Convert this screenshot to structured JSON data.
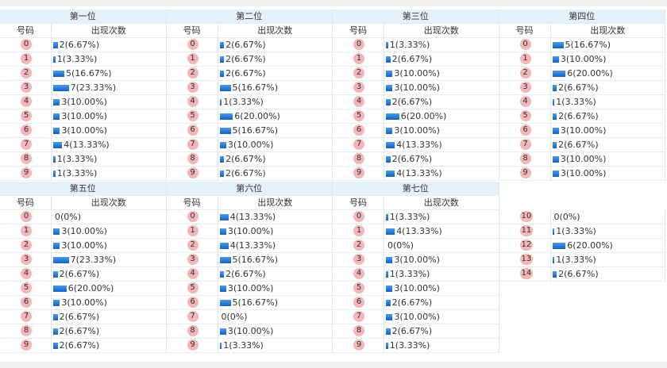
{
  "column_headers": [
    "号码",
    "出现次数"
  ],
  "panels": [
    {
      "title": "第一位",
      "rows": [
        {
          "number": "0",
          "count": 2,
          "text": "2(6.67%)"
        },
        {
          "number": "1",
          "count": 1,
          "text": "1(3.33%)"
        },
        {
          "number": "2",
          "count": 5,
          "text": "5(16.67%)"
        },
        {
          "number": "3",
          "count": 7,
          "text": "7(23.33%)"
        },
        {
          "number": "4",
          "count": 3,
          "text": "3(10.00%)"
        },
        {
          "number": "5",
          "count": 3,
          "text": "3(10.00%)"
        },
        {
          "number": "6",
          "count": 3,
          "text": "3(10.00%)"
        },
        {
          "number": "7",
          "count": 4,
          "text": "4(13.33%)"
        },
        {
          "number": "8",
          "count": 1,
          "text": "1(3.33%)"
        },
        {
          "number": "9",
          "count": 1,
          "text": "1(3.33%)"
        }
      ]
    },
    {
      "title": "第二位",
      "rows": [
        {
          "number": "0",
          "count": 2,
          "text": "2(6.67%)"
        },
        {
          "number": "1",
          "count": 2,
          "text": "2(6.67%)"
        },
        {
          "number": "2",
          "count": 2,
          "text": "2(6.67%)"
        },
        {
          "number": "3",
          "count": 5,
          "text": "5(16.67%)"
        },
        {
          "number": "4",
          "count": 1,
          "text": "1(3.33%)"
        },
        {
          "number": "5",
          "count": 6,
          "text": "6(20.00%)"
        },
        {
          "number": "6",
          "count": 5,
          "text": "5(16.67%)"
        },
        {
          "number": "7",
          "count": 3,
          "text": "3(10.00%)"
        },
        {
          "number": "8",
          "count": 2,
          "text": "2(6.67%)"
        },
        {
          "number": "9",
          "count": 2,
          "text": "2(6.67%)"
        }
      ]
    },
    {
      "title": "第三位",
      "rows": [
        {
          "number": "0",
          "count": 1,
          "text": "1(3.33%)"
        },
        {
          "number": "1",
          "count": 2,
          "text": "2(6.67%)"
        },
        {
          "number": "2",
          "count": 3,
          "text": "3(10.00%)"
        },
        {
          "number": "3",
          "count": 3,
          "text": "3(10.00%)"
        },
        {
          "number": "4",
          "count": 2,
          "text": "2(6.67%)"
        },
        {
          "number": "5",
          "count": 6,
          "text": "6(20.00%)"
        },
        {
          "number": "6",
          "count": 3,
          "text": "3(10.00%)"
        },
        {
          "number": "7",
          "count": 4,
          "text": "4(13.33%)"
        },
        {
          "number": "8",
          "count": 2,
          "text": "2(6.67%)"
        },
        {
          "number": "9",
          "count": 4,
          "text": "4(13.33%)"
        }
      ]
    },
    {
      "title": "第四位",
      "rows": [
        {
          "number": "0",
          "count": 5,
          "text": "5(16.67%)"
        },
        {
          "number": "1",
          "count": 3,
          "text": "3(10.00%)"
        },
        {
          "number": "2",
          "count": 6,
          "text": "6(20.00%)"
        },
        {
          "number": "3",
          "count": 2,
          "text": "2(6.67%)"
        },
        {
          "number": "4",
          "count": 1,
          "text": "1(3.33%)"
        },
        {
          "number": "5",
          "count": 2,
          "text": "2(6.67%)"
        },
        {
          "number": "6",
          "count": 3,
          "text": "3(10.00%)"
        },
        {
          "number": "7",
          "count": 2,
          "text": "2(6.67%)"
        },
        {
          "number": "8",
          "count": 3,
          "text": "3(10.00%)"
        },
        {
          "number": "9",
          "count": 3,
          "text": "3(10.00%)"
        }
      ]
    },
    {
      "title": "第五位",
      "rows": [
        {
          "number": "0",
          "count": 0,
          "text": "0(0%)"
        },
        {
          "number": "1",
          "count": 3,
          "text": "3(10.00%)"
        },
        {
          "number": "2",
          "count": 3,
          "text": "3(10.00%)"
        },
        {
          "number": "3",
          "count": 7,
          "text": "7(23.33%)"
        },
        {
          "number": "4",
          "count": 2,
          "text": "2(6.67%)"
        },
        {
          "number": "5",
          "count": 6,
          "text": "6(20.00%)"
        },
        {
          "number": "6",
          "count": 3,
          "text": "3(10.00%)"
        },
        {
          "number": "7",
          "count": 2,
          "text": "2(6.67%)"
        },
        {
          "number": "8",
          "count": 2,
          "text": "2(6.67%)"
        },
        {
          "number": "9",
          "count": 2,
          "text": "2(6.67%)"
        }
      ]
    },
    {
      "title": "第六位",
      "rows": [
        {
          "number": "0",
          "count": 4,
          "text": "4(13.33%)"
        },
        {
          "number": "1",
          "count": 3,
          "text": "3(10.00%)"
        },
        {
          "number": "2",
          "count": 4,
          "text": "4(13.33%)"
        },
        {
          "number": "3",
          "count": 5,
          "text": "5(16.67%)"
        },
        {
          "number": "4",
          "count": 2,
          "text": "2(6.67%)"
        },
        {
          "number": "5",
          "count": 3,
          "text": "3(10.00%)"
        },
        {
          "number": "6",
          "count": 5,
          "text": "5(16.67%)"
        },
        {
          "number": "7",
          "count": 0,
          "text": "0(0%)"
        },
        {
          "number": "8",
          "count": 3,
          "text": "3(10.00%)"
        },
        {
          "number": "9",
          "count": 1,
          "text": "1(3.33%)"
        }
      ]
    },
    {
      "title": "第七位",
      "rows": [
        {
          "number": "0",
          "count": 1,
          "text": "1(3.33%)"
        },
        {
          "number": "1",
          "count": 4,
          "text": "4(13.33%)"
        },
        {
          "number": "2",
          "count": 0,
          "text": "0(0%)"
        },
        {
          "number": "3",
          "count": 3,
          "text": "3(10.00%)"
        },
        {
          "number": "4",
          "count": 1,
          "text": "1(3.33%)"
        },
        {
          "number": "5",
          "count": 3,
          "text": "3(10.00%)"
        },
        {
          "number": "6",
          "count": 2,
          "text": "2(6.67%)"
        },
        {
          "number": "7",
          "count": 3,
          "text": "3(10.00%)"
        },
        {
          "number": "8",
          "count": 2,
          "text": "2(6.67%)"
        },
        {
          "number": "9",
          "count": 1,
          "text": "1(3.33%)"
        }
      ]
    },
    {
      "rows": [
        {
          "number": "10",
          "count": 0,
          "text": "0(0%)"
        },
        {
          "number": "11",
          "count": 1,
          "text": "1(3.33%)"
        },
        {
          "number": "12",
          "count": 6,
          "text": "6(20.00%)"
        },
        {
          "number": "13",
          "count": 1,
          "text": "1(3.33%)"
        },
        {
          "number": "14",
          "count": 2,
          "text": "2(6.67%)"
        }
      ]
    }
  ]
}
